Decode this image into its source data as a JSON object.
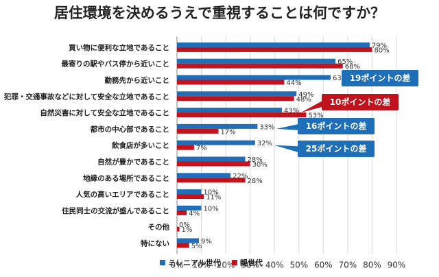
{
  "chart_data": {
    "type": "bar",
    "orientation": "horizontal",
    "title": "居住環境を決めるうえで重視することは何ですか？",
    "categories": [
      "買い物に便利な立地であること",
      "最寄りの駅やバス停から近いこと",
      "勤務先から近いこと",
      "犯罪・交通事故などに対して安全な立地であること",
      "自然災害に対して安全な立地であること",
      "都市の中心部であること",
      "飲食店が多いこと",
      "自然が豊かであること",
      "地縁のある場所であること",
      "人気の高いエリアであること",
      "住民同士の交流が盛んであること",
      "その他",
      "特にない"
    ],
    "series": [
      {
        "name": "ミレニアル世代",
        "color": "#1f6fb8",
        "values": [
          79,
          65,
          63,
          49,
          43,
          33,
          32,
          28,
          22,
          10,
          10,
          0,
          9
        ]
      },
      {
        "name": "親世代",
        "color": "#c0131d",
        "values": [
          80,
          68,
          44,
          48,
          53,
          17,
          7,
          30,
          28,
          11,
          4,
          1,
          5
        ]
      }
    ],
    "value_labels": [
      [
        "79%",
        "65%",
        "63%",
        "49%",
        "43%",
        "33%",
        "32%",
        "28%",
        "22%",
        "10%",
        "10%",
        "0%",
        "9%"
      ],
      [
        "80%",
        "68%",
        "44%",
        "48%",
        "53%",
        "17%",
        "7%",
        "30%",
        "28%",
        "11%",
        "4%",
        "1%",
        "5%"
      ]
    ],
    "xlim": [
      0,
      90
    ],
    "ticks": [
      0,
      10,
      20,
      30,
      40,
      50,
      60,
      70,
      80,
      90
    ],
    "tick_labels": [
      "0%",
      "10%",
      "20%",
      "30%",
      "40%",
      "50%",
      "60%",
      "70%",
      "80%",
      "90%"
    ],
    "legend": {
      "position": "bottom-left"
    },
    "grid": true,
    "callouts": [
      {
        "text": "19ポイントの差",
        "category_index": 2,
        "color": "#1f6fb8"
      },
      {
        "text": "10ポイントの差",
        "category_index": 4,
        "color": "#c0131d"
      },
      {
        "text": "16ポイントの差",
        "category_index": 5,
        "color": "#1f6fb8"
      },
      {
        "text": "25ポイントの差",
        "category_index": 6,
        "color": "#1f6fb8"
      }
    ]
  }
}
